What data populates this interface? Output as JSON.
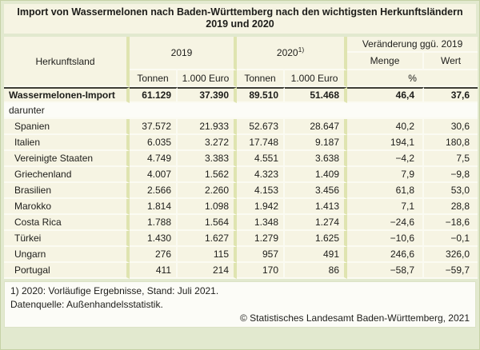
{
  "title": {
    "line1": "Import von Wassermelonen nach Baden-Württemberg nach den wichtigsten Herkunftsländern",
    "line2": "2019 und 2020"
  },
  "chart_data": {
    "type": "table",
    "title": "Import von Wassermelonen nach Baden-Württemberg nach den wichtigsten Herkunftsländern 2019 und 2020",
    "header": {
      "origin": "Herkunftsland",
      "group_2019": "2019",
      "group_2020": "2020",
      "footnote_marker": "1)",
      "group_change": "Veränderung ggü. 2019",
      "change_quantity": "Menge",
      "change_value": "Wert",
      "unit_tons": "Tonnen",
      "unit_euro": "1.000 Euro",
      "unit_percent": "%"
    },
    "total_row": {
      "label": "Wassermelonen-Import",
      "values": [
        "61.129",
        "37.390",
        "89.510",
        "51.468",
        "46,4",
        "37,6"
      ]
    },
    "subheading": "darunter",
    "rows": [
      {
        "label": "Spanien",
        "values": [
          "37.572",
          "21.933",
          "52.673",
          "28.647",
          "40,2",
          "30,6"
        ]
      },
      {
        "label": "Italien",
        "values": [
          "6.035",
          "3.272",
          "17.748",
          "9.187",
          "194,1",
          "180,8"
        ]
      },
      {
        "label": "Vereinigte Staaten",
        "values": [
          "4.749",
          "3.383",
          "4.551",
          "3.638",
          "−4,2",
          "7,5"
        ]
      },
      {
        "label": "Griechenland",
        "values": [
          "4.007",
          "1.562",
          "4.323",
          "1.409",
          "7,9",
          "−9,8"
        ]
      },
      {
        "label": "Brasilien",
        "values": [
          "2.566",
          "2.260",
          "4.153",
          "3.456",
          "61,8",
          "53,0"
        ]
      },
      {
        "label": "Marokko",
        "values": [
          "1.814",
          "1.098",
          "1.942",
          "1.413",
          "7,1",
          "28,8"
        ]
      },
      {
        "label": "Costa Rica",
        "values": [
          "1.788",
          "1.564",
          "1.348",
          "1.274",
          "−24,6",
          "−18,6"
        ]
      },
      {
        "label": "Türkei",
        "values": [
          "1.430",
          "1.627",
          "1.279",
          "1.625",
          "−10,6",
          "−0,1"
        ]
      },
      {
        "label": "Ungarn",
        "values": [
          "276",
          "115",
          "957",
          "491",
          "246,6",
          "326,0"
        ]
      },
      {
        "label": "Portugal",
        "values": [
          "411",
          "214",
          "170",
          "86",
          "−58,7",
          "−59,7"
        ]
      }
    ]
  },
  "footer": {
    "footnote": "1) 2020: Vorläufige Ergebnisse, Stand: Juli 2021.",
    "source": "Datenquelle: Außenhandelsstatistik.",
    "copyright": "© Statistisches Landesamt Baden-Württemberg, 2021"
  },
  "colors": {
    "background": "#e2e9cf",
    "cell_cream": "#f6f4e3",
    "group_separator_olive": "#dfe4b0",
    "header_divider_dark": "#3e3e35",
    "text": "#1d1d1a"
  }
}
